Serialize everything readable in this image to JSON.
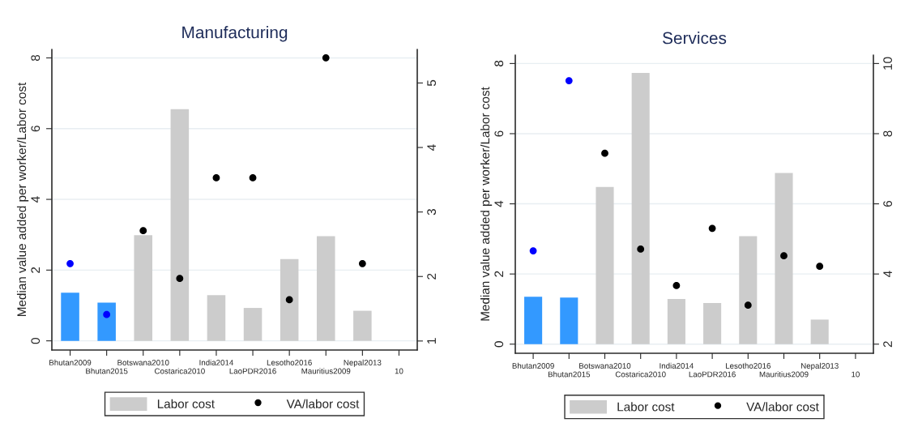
{
  "chart_data": [
    {
      "type": "bar",
      "title": "Manufacturing",
      "ylabel": "Median value added per worker/Labor cost",
      "categories": [
        "Bhutan2009",
        "Bhutan2015",
        "Botswana2010",
        "Costarica2010",
        "India2014",
        "LaoPDR2016",
        "Lesotho2016",
        "Mauritius2009",
        "Nepal2013",
        "10"
      ],
      "series": [
        {
          "name": "Labor cost",
          "color": "#cccccc",
          "colors": [
            "#3399ff",
            "#3399ff",
            "#cccccc",
            "#cccccc",
            "#cccccc",
            "#cccccc",
            "#cccccc",
            "#cccccc",
            "#cccccc",
            "#cccccc"
          ],
          "values": [
            1.36,
            1.08,
            2.99,
            6.55,
            1.29,
            0.93,
            2.31,
            2.96,
            0.85,
            null
          ]
        },
        {
          "name": "VA/labor cost",
          "type": "scatter",
          "axis": "y2",
          "color": "#000000",
          "colors": [
            "#0000ff",
            "#0000ff",
            "#000000",
            "#000000",
            "#000000",
            "#000000",
            "#000000",
            "#000000",
            "#000000",
            "#000000"
          ],
          "values": [
            2.2,
            1.41,
            2.71,
            1.97,
            3.53,
            3.53,
            1.64,
            5.39,
            2.2,
            null
          ]
        }
      ],
      "ylim": [
        -0.26,
        8.24
      ],
      "yticks": [
        0,
        2,
        4,
        6,
        8
      ],
      "y2lim": [
        0.86,
        5.52
      ],
      "y2ticks": [
        1,
        2,
        3,
        4,
        5
      ],
      "grid": "y",
      "legend": "bottom",
      "marker": "circle"
    },
    {
      "type": "bar",
      "title": "Services",
      "ylabel": "Median value added per worker/Labor cost",
      "categories": [
        "Bhutan2009",
        "Bhutan2015",
        "Botswana2010",
        "Costarica2010",
        "India2014",
        "LaoPDR2016",
        "Lesotho2016",
        "Mauritius2009",
        "Nepal2013",
        "10"
      ],
      "series": [
        {
          "name": "Labor cost",
          "color": "#cccccc",
          "colors": [
            "#3399ff",
            "#3399ff",
            "#cccccc",
            "#cccccc",
            "#cccccc",
            "#cccccc",
            "#cccccc",
            "#cccccc",
            "#cccccc",
            "#cccccc"
          ],
          "values": [
            1.35,
            1.33,
            4.48,
            7.73,
            1.29,
            1.17,
            3.08,
            4.88,
            0.7,
            null
          ]
        },
        {
          "name": "VA/labor cost",
          "type": "scatter",
          "axis": "y2",
          "color": "#000000",
          "colors": [
            "#0000ff",
            "#0000ff",
            "#000000",
            "#000000",
            "#000000",
            "#000000",
            "#000000",
            "#000000",
            "#000000",
            "#000000"
          ],
          "values": [
            4.66,
            9.51,
            7.44,
            4.71,
            3.67,
            5.3,
            3.11,
            4.52,
            4.22,
            null
          ]
        }
      ],
      "ylim": [
        -0.26,
        8.24
      ],
      "yticks": [
        0,
        2,
        4,
        6,
        8
      ],
      "y2lim": [
        1.74,
        10.24
      ],
      "y2ticks": [
        2,
        4,
        6,
        8,
        10
      ],
      "grid": "y",
      "legend": "bottom",
      "marker": "circle"
    }
  ]
}
